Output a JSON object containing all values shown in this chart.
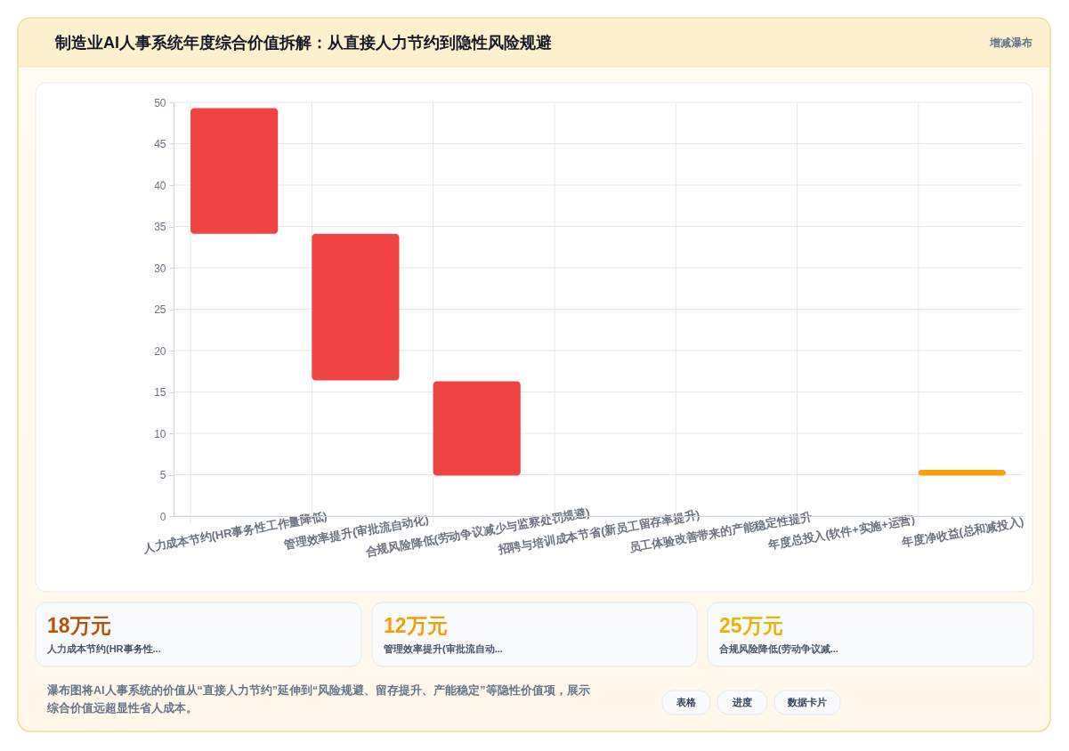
{
  "chart_data": {
    "type": "bar",
    "title": "制造业AI人事系统年度综合价值拆解：从直接人力节约到隐性风险规避",
    "categories": [
      "人力成本节约(HR事务性工作量降低)",
      "管理效率提升(审批流自动化)",
      "合规风险降低(劳动争议减少与监察处罚规避)",
      "招聘与培训成本节省(新员工留存率提升)",
      "员工体验改善带来的产能稳定性提升",
      "年度总投入(软件+实施+运营)",
      "年度净收益(总和减投入)"
    ],
    "values": [
      15.2,
      17.7,
      11.4,
      null,
      null,
      null,
      0.7
    ],
    "base": [
      34.1,
      16.4,
      4.9,
      null,
      null,
      null,
      4.9
    ],
    "colors": [
      "#ef4444",
      "#ef4444",
      "#ef4444",
      null,
      null,
      null,
      "#f59e0b"
    ],
    "ylim": [
      0,
      50
    ],
    "yticks": [
      0,
      5,
      10,
      15,
      20,
      25,
      30,
      35,
      40,
      45,
      50
    ],
    "grid": true,
    "annotations": [
      "增减瀑布",
      "18万元",
      "人力成本节约(HR事务性...",
      "12万元",
      "管理效率提升(审批流自动...",
      "25万元",
      "合规风险降低(劳动争议减...",
      "瀑布图将AI人事系统的价值从“直接人力节约”延伸到“风险规避、留存提升、产能稳定”等隐性价值项，展示综合价值远超显性省人成本。",
      "表格",
      "进度",
      "数据卡片"
    ]
  }
}
